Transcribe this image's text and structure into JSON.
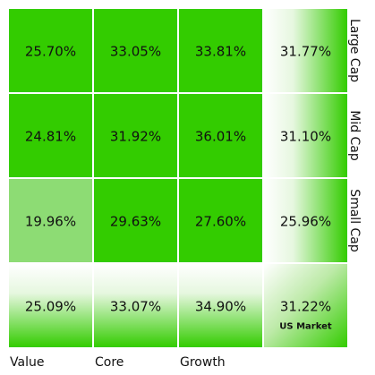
{
  "chart_data": {
    "type": "heatmap",
    "title": "",
    "columns": [
      "Value",
      "Core",
      "Growth"
    ],
    "rows": [
      "Large Cap",
      "Mid Cap",
      "Small Cap"
    ],
    "values": [
      [
        25.7,
        33.05,
        33.81
      ],
      [
        24.81,
        31.92,
        36.01
      ],
      [
        19.96,
        29.63,
        27.6
      ]
    ],
    "labels": [
      [
        "25.70%",
        "33.05%",
        "33.81%"
      ],
      [
        "24.81%",
        "31.92%",
        "36.01%"
      ],
      [
        "19.96%",
        "29.63%",
        "27.60%"
      ]
    ],
    "row_totals": [
      "31.77%",
      "31.10%",
      "25.96%"
    ],
    "row_total_values": [
      31.77,
      31.1,
      25.96
    ],
    "column_totals": [
      "25.09%",
      "33.07%",
      "34.90%"
    ],
    "column_total_values": [
      25.09,
      33.07,
      34.9
    ],
    "overall_total": "31.22%",
    "overall_total_value": 31.22,
    "overall_total_label": "US Market",
    "colors": {
      "high": "#33cc00",
      "low": "#8ddc74",
      "border": "#ffffff"
    }
  }
}
